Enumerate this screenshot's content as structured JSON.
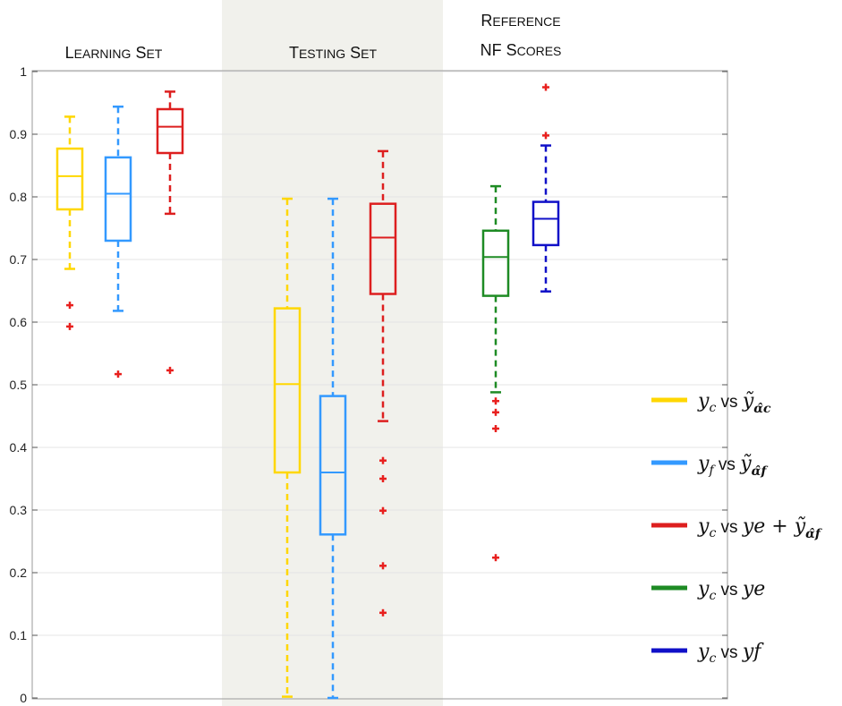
{
  "chart_data": {
    "type": "box",
    "ylim": [
      0,
      1
    ],
    "yticks": [
      "0",
      "0.1",
      "0.2",
      "0.3",
      "0.4",
      "0.5",
      "0.6",
      "0.7",
      "0.8",
      "0.9",
      "1"
    ],
    "grid": true,
    "legend_position": "right",
    "groups": [
      {
        "title_lines": [
          "LEARNING SET"
        ],
        "shaded": false
      },
      {
        "title_lines": [
          "TESTING SET"
        ],
        "shaded": true
      },
      {
        "title_lines": [
          "REFERENCE",
          "NF SCORES"
        ],
        "shaded": false
      }
    ],
    "series": [
      {
        "key": "ycf_c",
        "color": "#FFD700"
      },
      {
        "key": "ycf_f",
        "color": "#3399FF"
      },
      {
        "key": "ye_f",
        "color": "#DD1F1F"
      },
      {
        "key": "ye",
        "color": "#1E8B24"
      },
      {
        "key": "yf",
        "color": "#1010C8"
      }
    ],
    "boxes": [
      {
        "group": 0,
        "series": 0,
        "whisker_low": 0.685,
        "q1": 0.78,
        "median": 0.833,
        "q3": 0.877,
        "whisker_high": 0.928,
        "outliers": [
          0.627,
          0.593
        ]
      },
      {
        "group": 0,
        "series": 1,
        "whisker_low": 0.618,
        "q1": 0.73,
        "median": 0.805,
        "q3": 0.863,
        "whisker_high": 0.944,
        "outliers": [
          0.517
        ]
      },
      {
        "group": 0,
        "series": 2,
        "whisker_low": 0.773,
        "q1": 0.87,
        "median": 0.912,
        "q3": 0.94,
        "whisker_high": 0.968,
        "outliers": [
          0.523
        ]
      },
      {
        "group": 1,
        "series": 0,
        "whisker_low": 0.002,
        "q1": 0.36,
        "median": 0.501,
        "q3": 0.622,
        "whisker_high": 0.797,
        "outliers": []
      },
      {
        "group": 1,
        "series": 1,
        "whisker_low": 0.0,
        "q1": 0.261,
        "median": 0.36,
        "q3": 0.482,
        "whisker_high": 0.797,
        "outliers": []
      },
      {
        "group": 1,
        "series": 2,
        "whisker_low": 0.442,
        "q1": 0.645,
        "median": 0.735,
        "q3": 0.789,
        "whisker_high": 0.873,
        "outliers": [
          0.379,
          0.35,
          0.299,
          0.211,
          0.136
        ]
      },
      {
        "group": 2,
        "series": 3,
        "whisker_low": 0.488,
        "q1": 0.642,
        "median": 0.704,
        "q3": 0.746,
        "whisker_high": 0.817,
        "outliers": [
          0.474,
          0.456,
          0.43,
          0.224
        ]
      },
      {
        "group": 2,
        "series": 4,
        "whisker_low": 0.649,
        "q1": 0.723,
        "median": 0.765,
        "q3": 0.792,
        "whisker_high": 0.882,
        "outliers": [
          0.975,
          0.898
        ]
      }
    ],
    "outlier_color": "#E8201E",
    "legend": [
      {
        "series": 0,
        "y": "y",
        "y_sub": "c",
        "vs": "vs",
        "rhs": "ỹ",
        "rhs_sub": "α̂c",
        "extra": ""
      },
      {
        "series": 1,
        "y": "y",
        "y_sub": "f",
        "vs": "vs",
        "rhs": "ỹ",
        "rhs_sub": "α̂f",
        "extra": ""
      },
      {
        "series": 2,
        "y": "y",
        "y_sub": "c",
        "vs": "vs",
        "rhs": "ye + ỹ",
        "rhs_sub": "α̂f",
        "extra": ""
      },
      {
        "series": 3,
        "y": "y",
        "y_sub": "c",
        "vs": "vs",
        "rhs": "ye",
        "rhs_sub": "",
        "extra": ""
      },
      {
        "series": 4,
        "y": "y",
        "y_sub": "c",
        "vs": "vs",
        "rhs": "yf",
        "rhs_sub": "",
        "extra": ""
      }
    ]
  }
}
